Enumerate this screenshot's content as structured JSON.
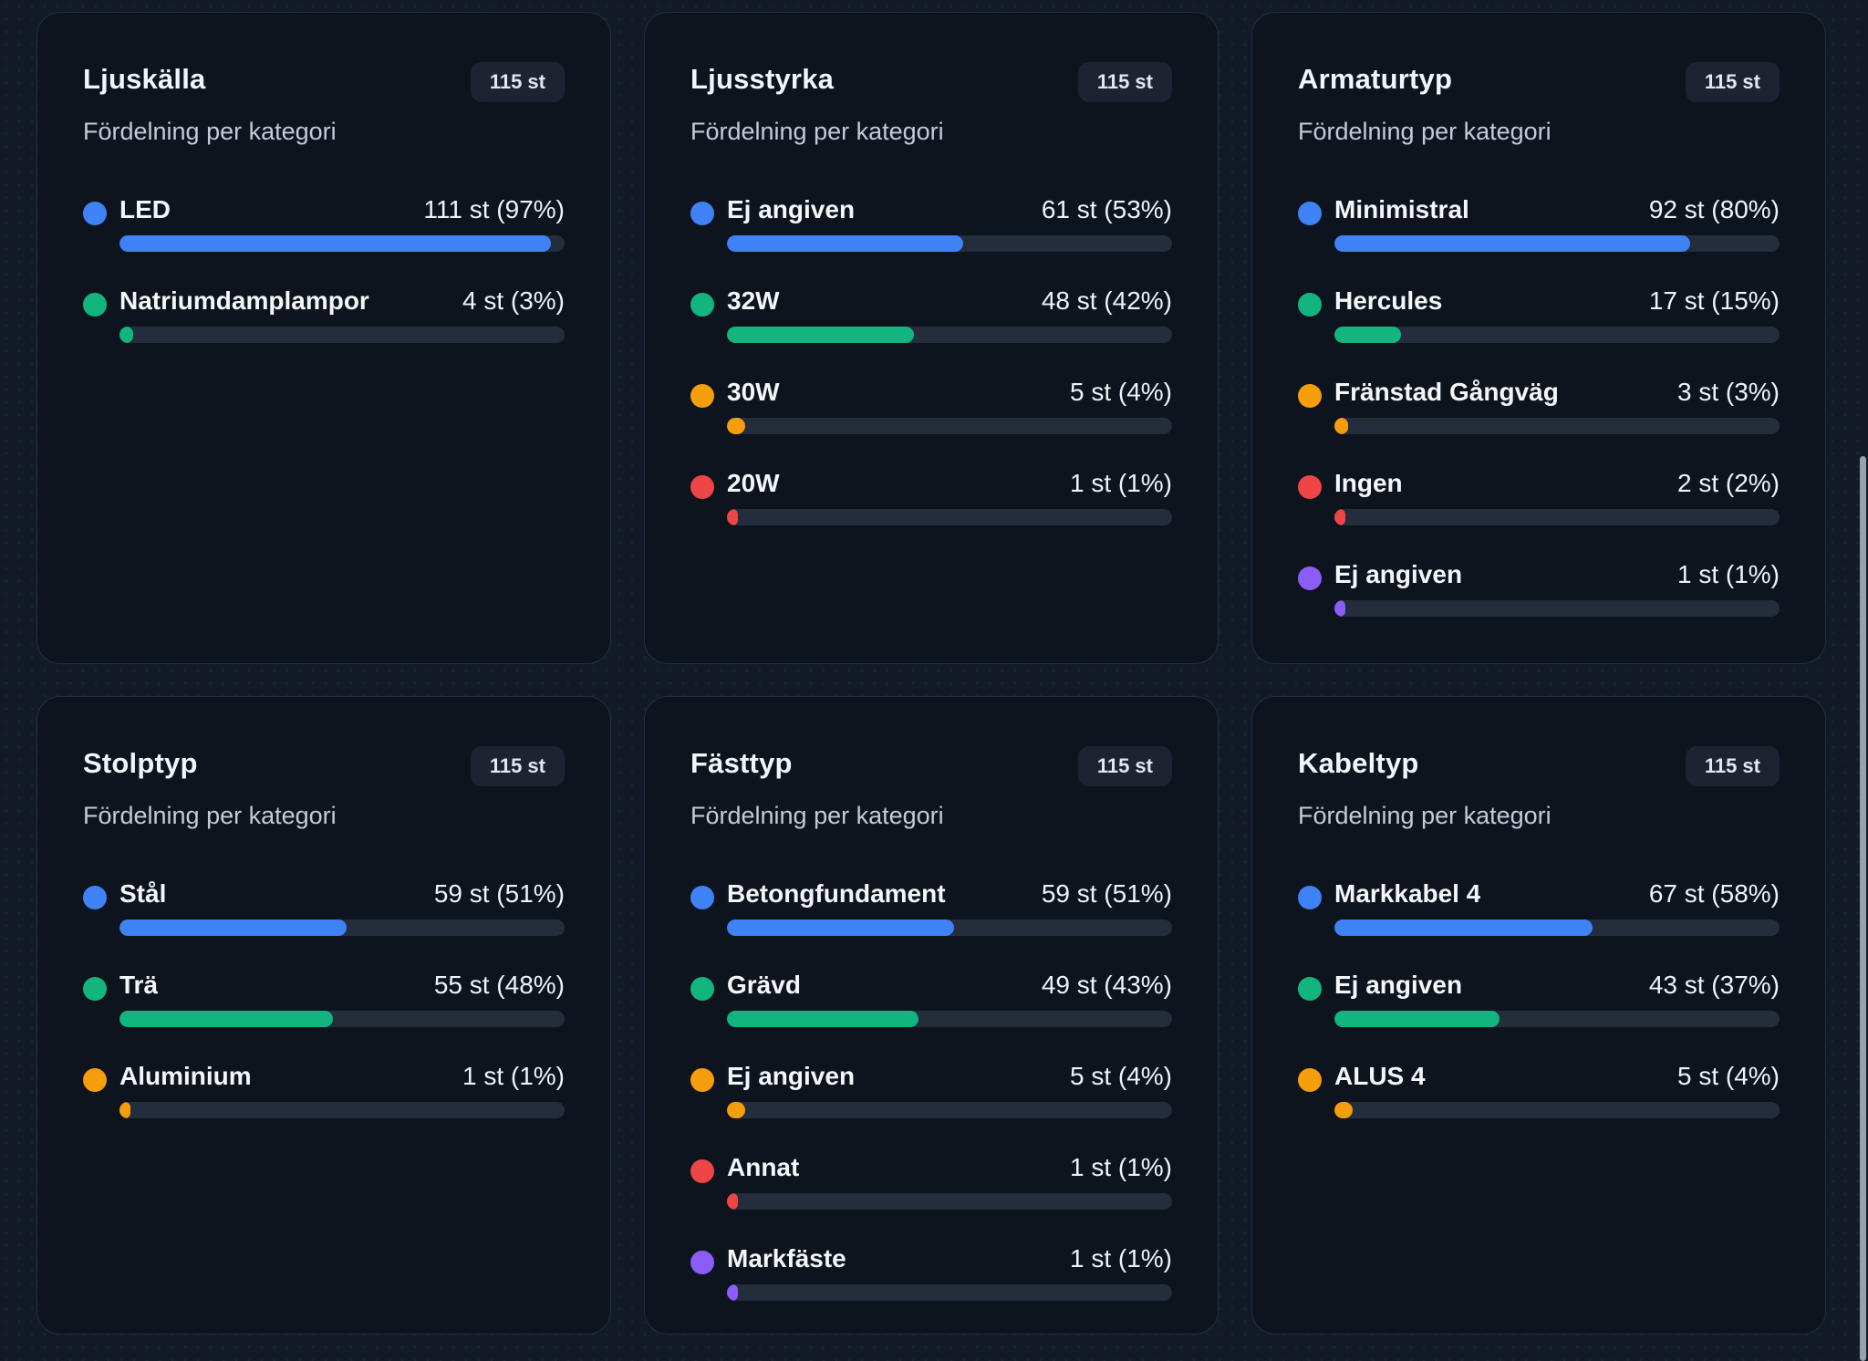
{
  "colors": {
    "blue": "#3e82f5",
    "green": "#12b57e",
    "orange": "#f59e0b",
    "red": "#ee4546",
    "purple": "#8b5cf6",
    "page_bg": "#121a26",
    "card_bg": "#0d141e",
    "track": "#232d3b",
    "badge_bg": "#1b2430"
  },
  "cards": [
    {
      "title": "Ljuskälla",
      "badge": "115 st",
      "subtitle": "Fördelning per kategori",
      "rows": [
        {
          "label": "LED",
          "value": "111 st (97%)",
          "pct": 97,
          "color": "blue"
        },
        {
          "label": "Natriumdamplampor",
          "value": "4 st (3%)",
          "pct": 3,
          "color": "green"
        }
      ]
    },
    {
      "title": "Ljusstyrka",
      "badge": "115 st",
      "subtitle": "Fördelning per kategori",
      "rows": [
        {
          "label": "Ej angiven",
          "value": "61 st (53%)",
          "pct": 53,
          "color": "blue"
        },
        {
          "label": "32W",
          "value": "48 st (42%)",
          "pct": 42,
          "color": "green"
        },
        {
          "label": "30W",
          "value": "5 st (4%)",
          "pct": 4,
          "color": "orange"
        },
        {
          "label": "20W",
          "value": "1 st (1%)",
          "pct": 1,
          "color": "red"
        }
      ]
    },
    {
      "title": "Armaturtyp",
      "badge": "115 st",
      "subtitle": "Fördelning per kategori",
      "rows": [
        {
          "label": "Minimistral",
          "value": "92 st (80%)",
          "pct": 80,
          "color": "blue"
        },
        {
          "label": "Hercules",
          "value": "17 st (15%)",
          "pct": 15,
          "color": "green"
        },
        {
          "label": "Fränstad Gångväg",
          "value": "3 st (3%)",
          "pct": 3,
          "color": "orange"
        },
        {
          "label": "Ingen",
          "value": "2 st (2%)",
          "pct": 2,
          "color": "red"
        },
        {
          "label": "Ej angiven",
          "value": "1 st (1%)",
          "pct": 1,
          "color": "purple"
        }
      ]
    },
    {
      "title": "Stolptyp",
      "badge": "115 st",
      "subtitle": "Fördelning per kategori",
      "rows": [
        {
          "label": "Stål",
          "value": "59 st (51%)",
          "pct": 51,
          "color": "blue"
        },
        {
          "label": "Trä",
          "value": "55 st (48%)",
          "pct": 48,
          "color": "green"
        },
        {
          "label": "Aluminium",
          "value": "1 st (1%)",
          "pct": 1,
          "color": "orange"
        }
      ]
    },
    {
      "title": "Fästtyp",
      "badge": "115 st",
      "subtitle": "Fördelning per kategori",
      "rows": [
        {
          "label": "Betongfundament",
          "value": "59 st (51%)",
          "pct": 51,
          "color": "blue"
        },
        {
          "label": "Grävd",
          "value": "49 st (43%)",
          "pct": 43,
          "color": "green"
        },
        {
          "label": "Ej angiven",
          "value": "5 st (4%)",
          "pct": 4,
          "color": "orange"
        },
        {
          "label": "Annat",
          "value": "1 st (1%)",
          "pct": 1,
          "color": "red"
        },
        {
          "label": "Markfäste",
          "value": "1 st (1%)",
          "pct": 1,
          "color": "purple"
        }
      ]
    },
    {
      "title": "Kabeltyp",
      "badge": "115 st",
      "subtitle": "Fördelning per kategori",
      "rows": [
        {
          "label": "Markkabel 4",
          "value": "67 st (58%)",
          "pct": 58,
          "color": "blue"
        },
        {
          "label": "Ej angiven",
          "value": "43 st (37%)",
          "pct": 37,
          "color": "green"
        },
        {
          "label": "ALUS 4",
          "value": "5 st (4%)",
          "pct": 4,
          "color": "orange"
        }
      ]
    }
  ],
  "chart_data": [
    {
      "type": "bar",
      "title": "Ljuskälla",
      "total": 115,
      "categories": [
        "LED",
        "Natriumdamplampor"
      ],
      "values": [
        111,
        4
      ],
      "percents": [
        97,
        3
      ]
    },
    {
      "type": "bar",
      "title": "Ljusstyrka",
      "total": 115,
      "categories": [
        "Ej angiven",
        "32W",
        "30W",
        "20W"
      ],
      "values": [
        61,
        48,
        5,
        1
      ],
      "percents": [
        53,
        42,
        4,
        1
      ]
    },
    {
      "type": "bar",
      "title": "Armaturtyp",
      "total": 115,
      "categories": [
        "Minimistral",
        "Hercules",
        "Fränstad Gångväg",
        "Ingen",
        "Ej angiven"
      ],
      "values": [
        92,
        17,
        3,
        2,
        1
      ],
      "percents": [
        80,
        15,
        3,
        2,
        1
      ]
    },
    {
      "type": "bar",
      "title": "Stolptyp",
      "total": 115,
      "categories": [
        "Stål",
        "Trä",
        "Aluminium"
      ],
      "values": [
        59,
        55,
        1
      ],
      "percents": [
        51,
        48,
        1
      ]
    },
    {
      "type": "bar",
      "title": "Fästtyp",
      "total": 115,
      "categories": [
        "Betongfundament",
        "Grävd",
        "Ej angiven",
        "Annat",
        "Markfäste"
      ],
      "values": [
        59,
        49,
        5,
        1,
        1
      ],
      "percents": [
        51,
        43,
        4,
        1,
        1
      ]
    },
    {
      "type": "bar",
      "title": "Kabeltyp",
      "total": 115,
      "categories": [
        "Markkabel 4",
        "Ej angiven",
        "ALUS 4"
      ],
      "values": [
        67,
        43,
        5
      ],
      "percents": [
        58,
        37,
        4
      ]
    }
  ]
}
